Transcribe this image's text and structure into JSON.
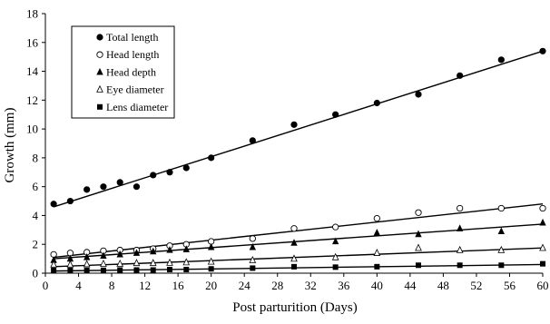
{
  "chart_data": {
    "type": "scatter",
    "xlabel": "Post parturition (Days)",
    "ylabel": "Growth (mm)",
    "xlim": [
      0,
      60
    ],
    "ylim": [
      0,
      18
    ],
    "xticks": [
      0,
      4,
      8,
      12,
      16,
      20,
      24,
      28,
      32,
      36,
      40,
      44,
      48,
      52,
      56,
      60
    ],
    "yticks": [
      0,
      2,
      4,
      6,
      8,
      10,
      12,
      14,
      16,
      18
    ],
    "grid": false,
    "legend_position": "top-left",
    "trendlines": true,
    "series": [
      {
        "name": "Total length",
        "marker": "filled-circle",
        "x": [
          1,
          3,
          5,
          7,
          9,
          11,
          13,
          15,
          17,
          20,
          25,
          30,
          35,
          40,
          45,
          50,
          55,
          60
        ],
        "y": [
          4.8,
          5.0,
          5.8,
          6.0,
          6.3,
          6.0,
          6.8,
          7.0,
          7.3,
          8.0,
          9.2,
          10.3,
          11.0,
          11.8,
          12.4,
          13.7,
          14.8,
          15.4
        ],
        "trend": [
          4.6,
          15.4
        ]
      },
      {
        "name": "Head length",
        "marker": "open-circle",
        "x": [
          1,
          3,
          5,
          7,
          9,
          11,
          13,
          15,
          17,
          20,
          25,
          30,
          35,
          40,
          45,
          50,
          55,
          60
        ],
        "y": [
          1.3,
          1.4,
          1.45,
          1.55,
          1.6,
          1.6,
          1.7,
          1.9,
          2.0,
          2.2,
          2.4,
          3.1,
          3.2,
          3.8,
          4.2,
          4.5,
          4.5,
          4.5
        ],
        "trend": [
          1.1,
          4.8
        ]
      },
      {
        "name": "Head depth",
        "marker": "filled-triangle",
        "x": [
          1,
          3,
          5,
          7,
          9,
          11,
          13,
          15,
          17,
          20,
          25,
          30,
          35,
          40,
          45,
          50,
          55,
          60
        ],
        "y": [
          0.9,
          1.0,
          1.1,
          1.2,
          1.3,
          1.4,
          1.5,
          1.6,
          1.65,
          1.8,
          1.8,
          2.1,
          2.2,
          2.8,
          2.7,
          3.1,
          2.9,
          3.5
        ],
        "trend": [
          1.0,
          3.4
        ]
      },
      {
        "name": "Eye diameter",
        "marker": "open-triangle",
        "x": [
          1,
          3,
          5,
          7,
          9,
          11,
          13,
          15,
          17,
          20,
          25,
          30,
          35,
          40,
          45,
          50,
          55,
          60
        ],
        "y": [
          0.6,
          0.6,
          0.62,
          0.65,
          0.65,
          0.7,
          0.7,
          0.72,
          0.75,
          0.8,
          0.9,
          1.0,
          1.1,
          1.4,
          1.75,
          1.6,
          1.6,
          1.75
        ],
        "trend": [
          0.45,
          1.75
        ]
      },
      {
        "name": "Lens diameter",
        "marker": "filled-square",
        "x": [
          1,
          3,
          5,
          7,
          9,
          11,
          13,
          15,
          17,
          20,
          25,
          30,
          35,
          40,
          45,
          50,
          55,
          60
        ],
        "y": [
          0.2,
          0.2,
          0.2,
          0.2,
          0.22,
          0.22,
          0.22,
          0.25,
          0.25,
          0.3,
          0.35,
          0.45,
          0.42,
          0.45,
          0.55,
          0.55,
          0.55,
          0.65
        ],
        "trend": [
          0.15,
          0.6
        ]
      }
    ]
  }
}
